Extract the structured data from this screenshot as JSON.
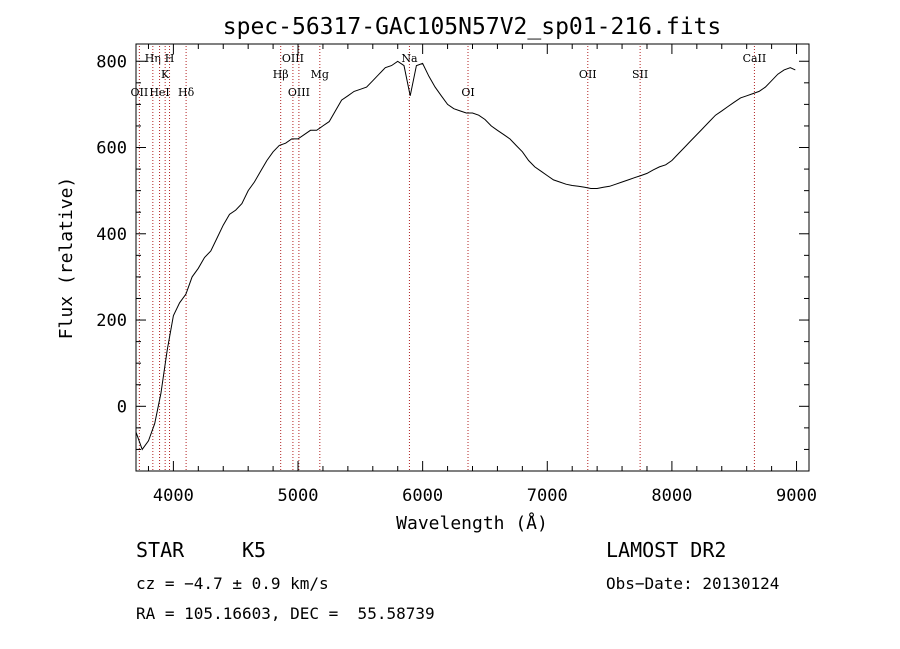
{
  "chart_data": {
    "type": "line",
    "title": "spec-56317-GAC105N57V2_sp01-216.fits",
    "xlabel": "Wavelength (Å)",
    "ylabel": "Flux (relative)",
    "xlim": [
      3700,
      9100
    ],
    "ylim": [
      -150,
      840
    ],
    "xticks": [
      4000,
      5000,
      6000,
      7000,
      8000,
      9000
    ],
    "yticks": [
      0,
      200,
      400,
      600,
      800
    ],
    "grid": false,
    "line_color": "#000000",
    "marker_color": "#b22222",
    "series": [
      {
        "x": [
          3700,
          3750,
          3800,
          3850,
          3900,
          3950,
          4000,
          4050,
          4100,
          4150,
          4200,
          4250,
          4300,
          4350,
          4400,
          4450,
          4500,
          4550,
          4600,
          4650,
          4700,
          4750,
          4800,
          4850,
          4900,
          4950,
          5000,
          5050,
          5100,
          5150,
          5200,
          5250,
          5300,
          5350,
          5400,
          5450,
          5500,
          5550,
          5600,
          5650,
          5700,
          5750,
          5800,
          5850,
          5900,
          5950,
          6000,
          6050,
          6100,
          6150,
          6200,
          6250,
          6300,
          6350,
          6400,
          6450,
          6500,
          6550,
          6600,
          6650,
          6700,
          6750,
          6800,
          6850,
          6900,
          6950,
          7000,
          7050,
          7100,
          7150,
          7200,
          7250,
          7300,
          7350,
          7400,
          7450,
          7500,
          7550,
          7600,
          7650,
          7700,
          7750,
          7800,
          7850,
          7900,
          7950,
          8000,
          8050,
          8100,
          8150,
          8200,
          8250,
          8300,
          8350,
          8400,
          8450,
          8500,
          8550,
          8600,
          8650,
          8700,
          8750,
          8800,
          8850,
          8900,
          8950,
          8990
        ],
        "y": [
          -60,
          -100,
          -80,
          -40,
          30,
          130,
          210,
          240,
          260,
          300,
          320,
          345,
          360,
          390,
          420,
          445,
          455,
          470,
          500,
          520,
          545,
          570,
          590,
          605,
          610,
          620,
          620,
          630,
          640,
          640,
          650,
          660,
          685,
          710,
          720,
          730,
          735,
          740,
          755,
          770,
          785,
          790,
          800,
          790,
          720,
          790,
          795,
          765,
          740,
          720,
          700,
          690,
          685,
          680,
          680,
          675,
          665,
          650,
          640,
          630,
          620,
          605,
          590,
          570,
          555,
          545,
          535,
          525,
          520,
          515,
          512,
          510,
          508,
          505,
          505,
          508,
          510,
          515,
          520,
          525,
          530,
          535,
          540,
          548,
          555,
          560,
          570,
          585,
          600,
          615,
          630,
          645,
          660,
          675,
          685,
          695,
          705,
          715,
          720,
          725,
          730,
          740,
          755,
          770,
          780,
          785,
          780
        ]
      }
    ],
    "lines": [
      {
        "label": "OII",
        "x": 3727,
        "row": 3
      },
      {
        "label": "Hη",
        "x": 3835,
        "row": 1
      },
      {
        "label": "HeI",
        "x": 3889,
        "row": 3
      },
      {
        "label": "K",
        "x": 3934,
        "row": 2
      },
      {
        "label": "H",
        "x": 3969,
        "row": 1
      },
      {
        "label": "Hδ",
        "x": 4102,
        "row": 3
      },
      {
        "label": "Hβ",
        "x": 4861,
        "row": 2
      },
      {
        "label": "OIII",
        "x": 4959,
        "row": 1
      },
      {
        "label": "OIII",
        "x": 5007,
        "row": 3
      },
      {
        "label": "Mg",
        "x": 5175,
        "row": 2
      },
      {
        "label": "Na",
        "x": 5894,
        "row": 1
      },
      {
        "label": "OI",
        "x": 6364,
        "row": 3
      },
      {
        "label": "OII",
        "x": 7325,
        "row": 2
      },
      {
        "label": "SII",
        "x": 7745,
        "row": 2
      },
      {
        "label": "CaII",
        "x": 8662,
        "row": 1
      }
    ]
  },
  "info": {
    "class": "STAR",
    "subclass": "K5",
    "survey": "LAMOST DR2",
    "cz": "cz = −4.7 ± 0.9 km/s",
    "obs_date": "Obs−Date: 20130124",
    "radec": "RA = 105.16603, DEC =  55.58739"
  }
}
